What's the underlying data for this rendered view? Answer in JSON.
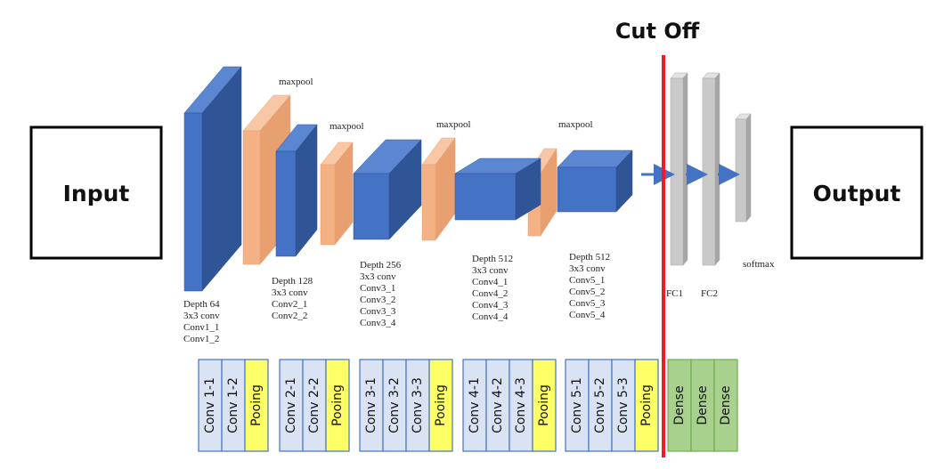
{
  "input_label": "Input",
  "output_label": "Output",
  "cutoff_label": "Cut Off",
  "pool_label": "maxpool",
  "softmax_label": "softmax",
  "colors": {
    "conv_front": "#4472c4",
    "conv_side": "#2f5597",
    "conv_top": "#5b86d1",
    "pool_front": "#f4b183",
    "pool_side": "#e8a070",
    "fc_front": "#c9c9c9",
    "fc_side": "#a6a6a6",
    "cutoff_line": "#ee1c25",
    "legend_conv_fill": "#dae3f3",
    "legend_conv_stroke": "#4472c4",
    "legend_pool_fill": "#ffff66",
    "legend_dense_fill": "#a9d18e",
    "legend_dense_stroke": "#70ad47"
  },
  "blocks": [
    {
      "lines": [
        "Depth 64",
        "3x3 conv",
        "Conv1_1",
        "Conv1_2"
      ]
    },
    {
      "lines": [
        "Depth 128",
        "3x3 conv",
        "Conv2_1",
        "Conv2_2"
      ]
    },
    {
      "lines": [
        "Depth 256",
        "3x3 conv",
        "Conv3_1",
        "Conv3_2",
        "Conv3_3",
        "Conv3_4"
      ]
    },
    {
      "lines": [
        "Depth 512",
        "3x3 conv",
        "Conv4_1",
        "Conv4_2",
        "Conv4_3",
        "Conv4_4"
      ]
    },
    {
      "lines": [
        "Depth 512",
        "3x3 conv",
        "Conv5_1",
        "Conv5_2",
        "Conv5_3",
        "Conv5_4"
      ]
    }
  ],
  "fc_labels": [
    "FC1",
    "FC2"
  ],
  "legend_groups": [
    {
      "convs": [
        "Conv 1-1",
        "Conv 1-2"
      ],
      "pool": "Pooing"
    },
    {
      "convs": [
        "Conv 2-1",
        "Conv 2-2"
      ],
      "pool": "Pooing"
    },
    {
      "convs": [
        "Conv 3-1",
        "Conv 3-2",
        "Conv 3-3"
      ],
      "pool": "Pooing"
    },
    {
      "convs": [
        "Conv 4-1",
        "Conv 4-2",
        "Conv 4-3"
      ],
      "pool": "Pooing"
    },
    {
      "convs": [
        "Conv 5-1",
        "Conv 5-2",
        "Conv 5-3"
      ],
      "pool": "Pooing"
    }
  ],
  "dense_labels": [
    "Dense",
    "Dense",
    "Dense"
  ]
}
